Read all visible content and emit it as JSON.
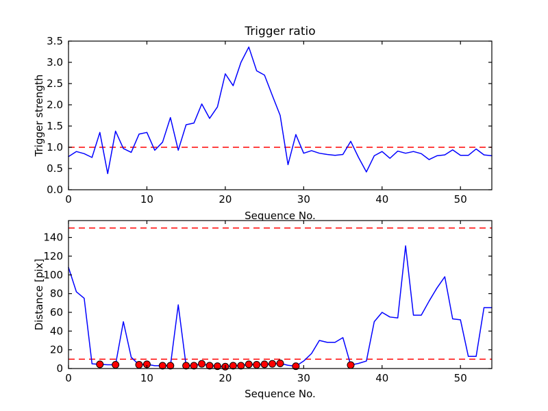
{
  "figure": {
    "background": "#ffffff",
    "line_color": "#0000ff",
    "threshold_color": "#ff0000",
    "marker_face": "#ff0000",
    "marker_edge": "#000000",
    "spine_color": "#000000"
  },
  "chart_data": [
    {
      "type": "line",
      "title": "Trigger ratio",
      "xlabel": "Sequence No.",
      "ylabel": "Trigger strength",
      "xlim": [
        0,
        54
      ],
      "ylim": [
        0,
        3.5
      ],
      "xticks": [
        0,
        10,
        20,
        30,
        40,
        50
      ],
      "yticks": [
        "0.0",
        "0.5",
        "1.0",
        "1.5",
        "2.0",
        "2.5",
        "3.0",
        "3.5"
      ],
      "grid": false,
      "legend": null,
      "thresholds": [
        1.0
      ],
      "x": [
        0,
        1,
        2,
        3,
        4,
        5,
        6,
        7,
        8,
        9,
        10,
        11,
        12,
        13,
        14,
        15,
        16,
        17,
        18,
        19,
        20,
        21,
        22,
        23,
        24,
        25,
        26,
        27,
        28,
        29,
        30,
        31,
        32,
        33,
        34,
        35,
        36,
        37,
        38,
        39,
        40,
        41,
        42,
        43,
        44,
        45,
        46,
        47,
        48,
        49,
        50,
        51,
        52,
        53,
        54
      ],
      "y": [
        0.78,
        0.9,
        0.85,
        0.76,
        1.35,
        0.38,
        1.38,
        0.97,
        0.88,
        1.31,
        1.35,
        0.93,
        1.12,
        1.7,
        0.93,
        1.53,
        1.57,
        2.02,
        1.68,
        1.95,
        2.73,
        2.45,
        3.0,
        3.36,
        2.8,
        2.7,
        2.22,
        1.75,
        0.59,
        1.3,
        0.86,
        0.92,
        0.86,
        0.83,
        0.81,
        0.83,
        1.14,
        0.76,
        0.42,
        0.8,
        0.9,
        0.74,
        0.91,
        0.86,
        0.9,
        0.85,
        0.71,
        0.8,
        0.82,
        0.94,
        0.81,
        0.81,
        0.96,
        0.82,
        0.8
      ]
    },
    {
      "type": "line",
      "title": "",
      "xlabel": "Sequence No.",
      "ylabel": "Distance [pix]",
      "xlim": [
        0,
        54
      ],
      "ylim": [
        0,
        158
      ],
      "xticks": [
        0,
        10,
        20,
        30,
        40,
        50
      ],
      "yticks": [
        0,
        20,
        40,
        60,
        80,
        100,
        120,
        140
      ],
      "grid": false,
      "legend": null,
      "thresholds": [
        150,
        10
      ],
      "x": [
        0,
        1,
        2,
        3,
        4,
        5,
        6,
        7,
        8,
        9,
        10,
        11,
        12,
        13,
        14,
        15,
        16,
        17,
        18,
        19,
        20,
        21,
        22,
        23,
        24,
        25,
        26,
        27,
        28,
        29,
        30,
        31,
        32,
        33,
        34,
        35,
        36,
        37,
        38,
        39,
        40,
        41,
        42,
        43,
        44,
        45,
        46,
        47,
        48,
        49,
        50,
        51,
        52,
        53,
        54
      ],
      "y": [
        108,
        82,
        75,
        5,
        4.5,
        4,
        4,
        50,
        12,
        4,
        4.5,
        3,
        3,
        3,
        68,
        3,
        3,
        5,
        3,
        2.5,
        2,
        3,
        3,
        4.5,
        4,
        4.5,
        5,
        5.5,
        3.5,
        2.5,
        8,
        16,
        30,
        28,
        28,
        33,
        3.7,
        5.5,
        8,
        50,
        60,
        55,
        54,
        131,
        57,
        57,
        72,
        86,
        98,
        53,
        52,
        13,
        13,
        65,
        65
      ],
      "marker_style": "red-circle",
      "marker_x": [
        4,
        6,
        9,
        10,
        12,
        13,
        15,
        16,
        17,
        18,
        19,
        20,
        21,
        22,
        23,
        24,
        25,
        26,
        27,
        29,
        36
      ],
      "marker_y": [
        4.5,
        4,
        4,
        4.5,
        3,
        3,
        3,
        3,
        5,
        3,
        2.5,
        2,
        3,
        3,
        4.5,
        4,
        4.5,
        5,
        5.5,
        2.5,
        3.7
      ]
    }
  ]
}
